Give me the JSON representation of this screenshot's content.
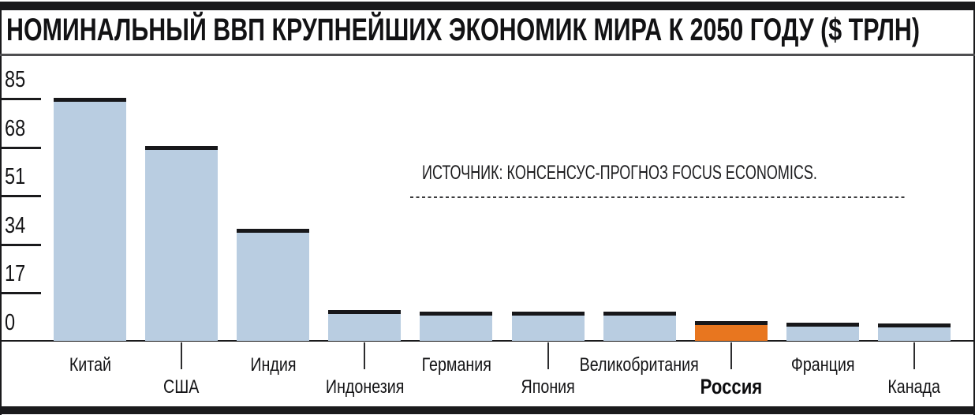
{
  "chart_data": {
    "type": "bar",
    "title": "НОМИНАЛЬНЫЙ ВВП КРУПНЕЙШИХ ЭКОНОМИК МИРА К 2050 ГОДУ ($ ТРЛН)",
    "source": "ИСТОЧНИК: КОНСЕНСУС-ПРОГНОЗ FOCUS ECONOMICS.",
    "categories": [
      "Китай",
      "США",
      "Индия",
      "Индонезия",
      "Германия",
      "Япония",
      "Великобритания",
      "Россия",
      "Франция",
      "Канада"
    ],
    "values": [
      85,
      68.2,
      39.2,
      10.8,
      10.3,
      10.1,
      10.3,
      6.8,
      6.3,
      6.2
    ],
    "highlight_category": "Россия",
    "highlight_index": 7,
    "y_ticks": [
      85,
      68,
      51,
      34,
      17,
      0
    ],
    "ylim": [
      0,
      85
    ],
    "xlabel": "",
    "ylabel": "",
    "grid": false,
    "legend": false,
    "colors": {
      "bar": "#b9cde1",
      "highlight": "#e8761f",
      "bar_cap": "#17171a",
      "frame": "#1a1a1c",
      "text": "#141416"
    }
  }
}
